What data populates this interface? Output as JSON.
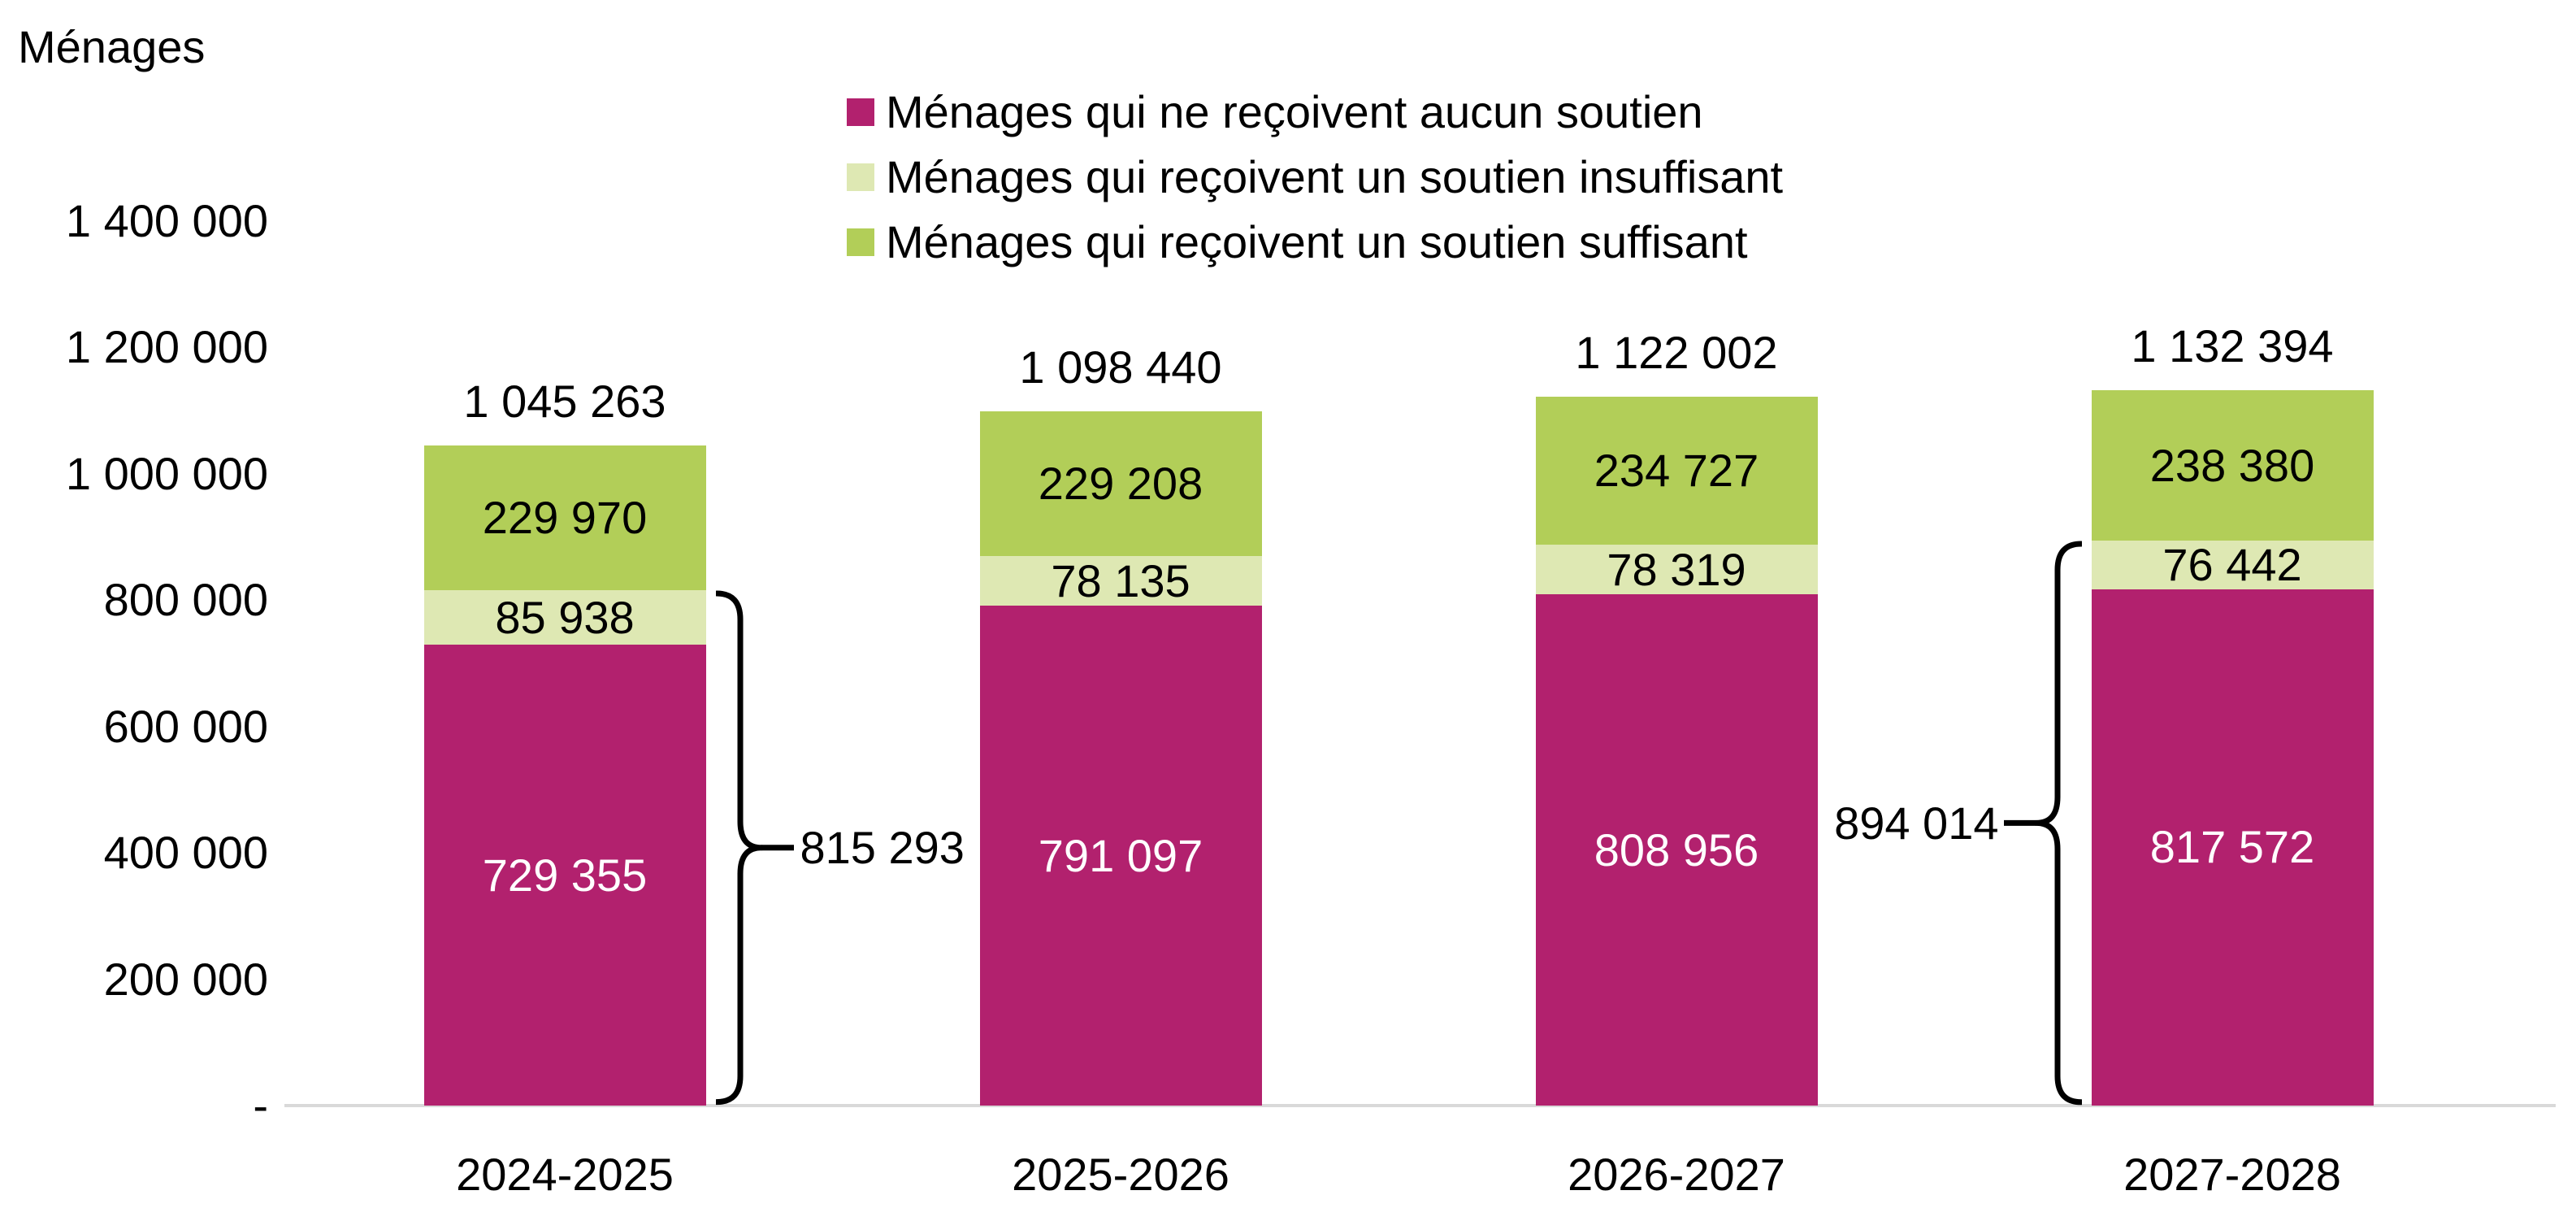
{
  "title": "Ménages",
  "chart_data": {
    "type": "bar",
    "stacked": true,
    "grid": false,
    "legend_position": "top-center",
    "ylabel": "Ménages",
    "xlabel": "",
    "categories": [
      "2024-2025",
      "2025-2026",
      "2026-2027",
      "2027-2028"
    ],
    "series": [
      {
        "name": "Ménages qui ne reçoivent aucun soutien",
        "color": "#B2216E",
        "label_color": "#FFFFFF",
        "values": [
          729355,
          791097,
          808956,
          817572
        ],
        "labels": [
          "729 355",
          "791 097",
          "808 956",
          "817 572"
        ]
      },
      {
        "name": "Ménages qui reçoivent un soutien insuffisant",
        "color": "#DEE8B3",
        "label_color": "#000000",
        "values": [
          85938,
          78135,
          78319,
          76442
        ],
        "labels": [
          "85 938",
          "78 135",
          "78 319",
          "76 442"
        ]
      },
      {
        "name": "Ménages qui reçoivent un soutien suffisant",
        "color": "#B2CE58",
        "label_color": "#000000",
        "values": [
          229970,
          229208,
          234727,
          238380
        ],
        "labels": [
          "229 970",
          "229 208",
          "234 727",
          "238 380"
        ]
      }
    ],
    "totals": {
      "values": [
        1045263,
        1098440,
        1122002,
        1132394
      ],
      "labels": [
        "1 045 263",
        "1 098 440",
        "1 122 002",
        "1 132 394"
      ]
    },
    "annotations": [
      {
        "bar": 0,
        "side": "right",
        "value": 815293,
        "label": "815 293",
        "covers": "aucun soutien + soutien insuffisant"
      },
      {
        "bar": 3,
        "side": "left",
        "value": 894014,
        "label": "894 014",
        "covers": "aucun soutien + soutien insuffisant"
      }
    ],
    "y_axis": {
      "max": 1400000,
      "tick_values": [
        1400000,
        1200000,
        1000000,
        800000,
        600000,
        400000,
        200000,
        0
      ],
      "ticks": [
        "1 400 000",
        "1 200 000",
        "1 000 000",
        "800 000",
        "600 000",
        "400 000",
        "200 000",
        "-"
      ]
    },
    "axis_line_color": "#D9D9D9",
    "brace_color": "#000000"
  }
}
